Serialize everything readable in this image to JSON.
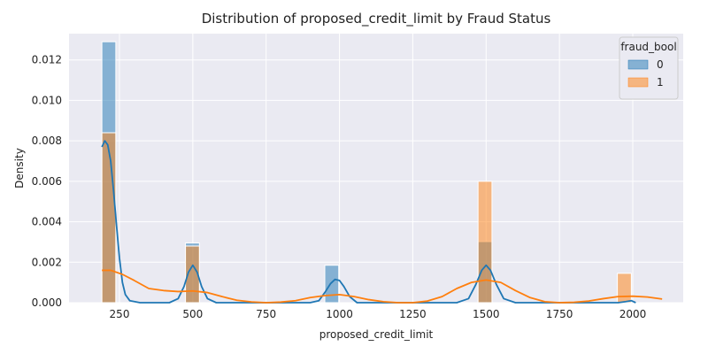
{
  "chart_data": {
    "type": "histogram",
    "title": "Distribution of proposed_credit_limit by Fraud Status",
    "xlabel": "proposed_credit_limit",
    "ylabel": "Density",
    "xlim": [
      78,
      2172
    ],
    "ylim": [
      0,
      0.0133
    ],
    "xticks": [
      250,
      500,
      750,
      1000,
      1250,
      1500,
      1750,
      2000
    ],
    "yticks": [
      0.0,
      0.002,
      0.004,
      0.006,
      0.008,
      0.01,
      0.012
    ],
    "ytick_labels": [
      "0.000",
      "0.002",
      "0.004",
      "0.006",
      "0.008",
      "0.010",
      "0.012"
    ],
    "grid": true,
    "legend": {
      "title": "fraud_bool",
      "placement": "top-right",
      "entries": [
        "0",
        "1"
      ]
    },
    "bin_width": 47.5,
    "series": [
      {
        "name": "0",
        "color": "#1f77b4",
        "bins": [
          {
            "x0": 190,
            "x1": 237.5,
            "density": 0.0129
          },
          {
            "x0": 475,
            "x1": 522.5,
            "density": 0.00295
          },
          {
            "x0": 950,
            "x1": 997.5,
            "density": 0.00185
          },
          {
            "x0": 1472.5,
            "x1": 1520,
            "density": 0.00302
          }
        ],
        "kde": [
          [
            190,
            0.0077
          ],
          [
            200,
            0.008
          ],
          [
            210,
            0.0078
          ],
          [
            220,
            0.007
          ],
          [
            230,
            0.0055
          ],
          [
            240,
            0.0038
          ],
          [
            250,
            0.0022
          ],
          [
            260,
            0.001
          ],
          [
            270,
            0.0004
          ],
          [
            285,
            0.0001
          ],
          [
            320,
            0.0
          ],
          [
            420,
            0.0
          ],
          [
            450,
            0.0002
          ],
          [
            470,
            0.0008
          ],
          [
            485,
            0.0015
          ],
          [
            500,
            0.00185
          ],
          [
            515,
            0.0015
          ],
          [
            530,
            0.0008
          ],
          [
            550,
            0.0002
          ],
          [
            580,
            0.0
          ],
          [
            900,
            0.0
          ],
          [
            930,
            0.0001
          ],
          [
            950,
            0.0005
          ],
          [
            970,
            0.00095
          ],
          [
            985,
            0.00115
          ],
          [
            1000,
            0.0011
          ],
          [
            1015,
            0.0008
          ],
          [
            1035,
            0.0003
          ],
          [
            1060,
            0.0
          ],
          [
            1400,
            0.0
          ],
          [
            1440,
            0.0002
          ],
          [
            1465,
            0.0009
          ],
          [
            1485,
            0.0016
          ],
          [
            1500,
            0.00185
          ],
          [
            1515,
            0.0016
          ],
          [
            1535,
            0.0009
          ],
          [
            1560,
            0.0002
          ],
          [
            1600,
            0.0
          ],
          [
            1950,
            0.0
          ],
          [
            1975,
            5e-05
          ],
          [
            1995,
            0.0001
          ],
          [
            2010,
            0.0
          ]
        ]
      },
      {
        "name": "1",
        "color": "#ff7f0e",
        "bins": [
          {
            "x0": 190,
            "x1": 237.5,
            "density": 0.0084
          },
          {
            "x0": 475,
            "x1": 522.5,
            "density": 0.0028
          },
          {
            "x0": 1472.5,
            "x1": 1520,
            "density": 0.006
          },
          {
            "x0": 1947.5,
            "x1": 1995,
            "density": 0.00145
          }
        ],
        "kde": [
          [
            190,
            0.0016
          ],
          [
            220,
            0.0016
          ],
          [
            260,
            0.0014
          ],
          [
            300,
            0.0011
          ],
          [
            350,
            0.0007
          ],
          [
            400,
            0.0006
          ],
          [
            450,
            0.00055
          ],
          [
            500,
            0.00058
          ],
          [
            550,
            0.0005
          ],
          [
            600,
            0.0003
          ],
          [
            650,
            0.00012
          ],
          [
            700,
            4e-05
          ],
          [
            750,
            0.0
          ],
          [
            800,
            3e-05
          ],
          [
            850,
            0.0001
          ],
          [
            900,
            0.00025
          ],
          [
            950,
            0.00035
          ],
          [
            1000,
            0.0004
          ],
          [
            1050,
            0.0003
          ],
          [
            1100,
            0.00015
          ],
          [
            1150,
            5e-05
          ],
          [
            1200,
            0.0
          ],
          [
            1250,
            0.0
          ],
          [
            1300,
            8e-05
          ],
          [
            1350,
            0.0003
          ],
          [
            1400,
            0.0007
          ],
          [
            1450,
            0.001
          ],
          [
            1500,
            0.00112
          ],
          [
            1550,
            0.001
          ],
          [
            1600,
            0.0006
          ],
          [
            1650,
            0.00025
          ],
          [
            1700,
            5e-05
          ],
          [
            1750,
            0.0
          ],
          [
            1800,
            2e-05
          ],
          [
            1850,
            8e-05
          ],
          [
            1900,
            0.0002
          ],
          [
            1950,
            0.0003
          ],
          [
            2000,
            0.00032
          ],
          [
            2050,
            0.00028
          ],
          [
            2100,
            0.00018
          ]
        ]
      }
    ]
  }
}
